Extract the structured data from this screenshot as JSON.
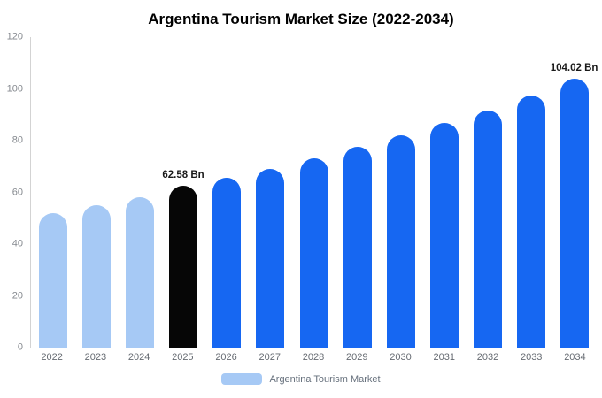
{
  "title": "Argentina Tourism Market Size (2022-2034)",
  "legend": {
    "label": "Argentina Tourism Market"
  },
  "colors": {
    "light_blue": "#a6c9f5",
    "blue": "#1667f2",
    "black": "#060606",
    "axis_text": "#85898f",
    "label_text": "#666b72",
    "annotation_text": "#1a1a1a",
    "axis_line": "#d3d3d3"
  },
  "chart_data": {
    "type": "bar",
    "title": "Argentina Tourism Market Size (2022-2034)",
    "categories": [
      "2022",
      "2023",
      "2024",
      "2025",
      "2026",
      "2027",
      "2028",
      "2029",
      "2030",
      "2031",
      "2032",
      "2033",
      "2034"
    ],
    "values": [
      52,
      55,
      58,
      62.58,
      65.5,
      69,
      73,
      77.5,
      82,
      87,
      91.5,
      97.5,
      104.02
    ],
    "bar_colors": [
      "light_blue",
      "light_blue",
      "light_blue",
      "black",
      "blue",
      "blue",
      "blue",
      "blue",
      "blue",
      "blue",
      "blue",
      "blue",
      "blue"
    ],
    "ylim": [
      0,
      120
    ],
    "yticks": [
      0,
      20,
      40,
      60,
      80,
      100,
      120
    ],
    "grid": false,
    "legend_position": "bottom",
    "annotations": [
      {
        "category": "2025",
        "text": "62.58 Bn"
      },
      {
        "category": "2034",
        "text": "104.02 Bn"
      }
    ]
  }
}
